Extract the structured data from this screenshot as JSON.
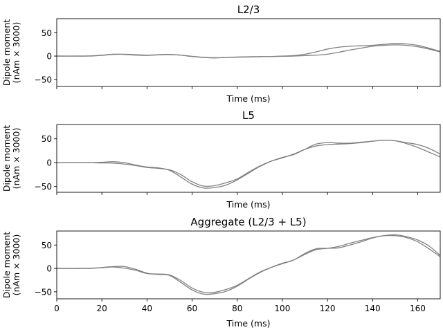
{
  "chart_data": [
    {
      "type": "line",
      "title": "L2/3",
      "xlabel": "Time (ms)",
      "ylabel": [
        "Dipole moment",
        "(nAm × 3000)"
      ],
      "xlim": [
        0,
        170
      ],
      "ylim": [
        -65,
        80
      ],
      "yticks": [
        -50,
        0,
        50
      ],
      "xticks": [
        0,
        20,
        40,
        60,
        80,
        100,
        120,
        140,
        160
      ],
      "show_xticklabels": false,
      "grid": false,
      "line_color": "#808080",
      "series": [
        {
          "x": [
            0,
            10,
            15,
            20,
            25,
            30,
            35,
            40,
            45,
            50,
            55,
            60,
            65,
            70,
            75,
            80,
            85,
            90,
            95,
            100,
            105,
            110,
            115,
            120,
            125,
            130,
            135,
            140,
            145,
            150,
            155,
            160,
            165,
            170
          ],
          "values": [
            0,
            0,
            0.5,
            2,
            4,
            3.5,
            2,
            1.5,
            2.5,
            3,
            2,
            -1,
            -3,
            -4,
            -3,
            -2,
            -1.5,
            -1,
            -1,
            -0.5,
            0,
            1,
            2,
            4,
            8,
            13,
            17,
            21,
            23,
            24,
            23,
            20,
            15,
            9
          ]
        },
        {
          "x": [
            0,
            10,
            15,
            20,
            25,
            30,
            35,
            40,
            45,
            50,
            55,
            60,
            65,
            70,
            75,
            80,
            85,
            90,
            95,
            100,
            105,
            110,
            115,
            120,
            125,
            130,
            135,
            140,
            145,
            150,
            155,
            160,
            165,
            170
          ],
          "values": [
            0,
            0,
            0,
            1.5,
            3.5,
            4,
            3,
            2,
            3,
            3.5,
            2,
            -0.5,
            -2.5,
            -3.5,
            -3,
            -2.5,
            -2,
            -1.5,
            -1,
            0,
            1,
            4,
            9,
            15,
            19,
            21,
            22,
            23,
            25,
            27,
            26,
            23,
            17,
            10
          ]
        }
      ]
    },
    {
      "type": "line",
      "title": "L5",
      "xlabel": "Time (ms)",
      "ylabel": [
        "Dipole moment",
        "(nAm × 3000)"
      ],
      "xlim": [
        0,
        170
      ],
      "ylim": [
        -62,
        80
      ],
      "yticks": [
        -50,
        0,
        50
      ],
      "xticks": [
        0,
        20,
        40,
        60,
        80,
        100,
        120,
        140,
        160
      ],
      "show_xticklabels": false,
      "grid": false,
      "line_color": "#808080",
      "series": [
        {
          "x": [
            0,
            10,
            15,
            20,
            25,
            30,
            35,
            40,
            45,
            50,
            55,
            60,
            65,
            70,
            75,
            80,
            85,
            90,
            95,
            100,
            105,
            110,
            115,
            120,
            125,
            130,
            135,
            140,
            145,
            150,
            155,
            160,
            165,
            170
          ],
          "values": [
            0,
            0,
            0,
            -0.5,
            -1,
            -3,
            -6,
            -10,
            -12,
            -15,
            -25,
            -40,
            -49,
            -48,
            -42,
            -34,
            -20,
            -7,
            3,
            10,
            18,
            28,
            35,
            38,
            39,
            40,
            42,
            45,
            47,
            46,
            40,
            32,
            22,
            12
          ]
        },
        {
          "x": [
            0,
            10,
            15,
            20,
            25,
            30,
            35,
            40,
            45,
            50,
            55,
            60,
            65,
            70,
            75,
            80,
            85,
            90,
            95,
            100,
            105,
            110,
            115,
            120,
            125,
            130,
            135,
            140,
            145,
            150,
            155,
            160,
            165,
            170
          ],
          "values": [
            0,
            0,
            0,
            1,
            2,
            0,
            -5,
            -9,
            -11,
            -16,
            -30,
            -45,
            -53,
            -52,
            -47,
            -36,
            -22,
            -8,
            3,
            11,
            17,
            28,
            39,
            42,
            41,
            41,
            43,
            45,
            47,
            46,
            42,
            38,
            30,
            18
          ]
        }
      ]
    },
    {
      "type": "line",
      "title": "Aggregate (L2/3 + L5)",
      "xlabel": "Time (ms)",
      "ylabel": [
        "Dipole moment",
        "(nAm × 3000)"
      ],
      "xlim": [
        0,
        170
      ],
      "ylim": [
        -65,
        80
      ],
      "yticks": [
        -50,
        0,
        50
      ],
      "xticks": [
        0,
        20,
        40,
        60,
        80,
        100,
        120,
        140,
        160
      ],
      "show_xticklabels": true,
      "grid": false,
      "line_color": "#808080",
      "series": [
        {
          "x": [
            0,
            10,
            15,
            20,
            25,
            30,
            35,
            40,
            45,
            50,
            55,
            60,
            65,
            70,
            75,
            80,
            85,
            90,
            95,
            100,
            105,
            110,
            115,
            120,
            125,
            130,
            135,
            140,
            145,
            150,
            155,
            160,
            165,
            170
          ],
          "values": [
            0,
            0,
            0.5,
            1.5,
            3,
            0.5,
            -4,
            -11,
            -12,
            -14,
            -26,
            -42,
            -51,
            -51,
            -45,
            -36,
            -22,
            -8,
            2,
            10,
            18,
            30,
            40,
            43,
            47,
            54,
            60,
            66,
            70,
            70,
            66,
            57,
            42,
            25
          ]
        },
        {
          "x": [
            0,
            10,
            15,
            20,
            25,
            30,
            35,
            40,
            45,
            50,
            55,
            60,
            65,
            70,
            75,
            80,
            85,
            90,
            95,
            100,
            105,
            110,
            115,
            120,
            125,
            130,
            135,
            140,
            145,
            150,
            155,
            160,
            165,
            170
          ],
          "values": [
            0,
            0,
            0,
            2,
            4,
            4,
            -2,
            -10,
            -13,
            -15,
            -30,
            -46,
            -55,
            -54,
            -49,
            -38,
            -23,
            -9,
            2,
            11,
            18,
            32,
            42,
            43,
            44,
            50,
            57,
            65,
            70,
            72,
            68,
            61,
            48,
            28
          ]
        }
      ]
    }
  ]
}
